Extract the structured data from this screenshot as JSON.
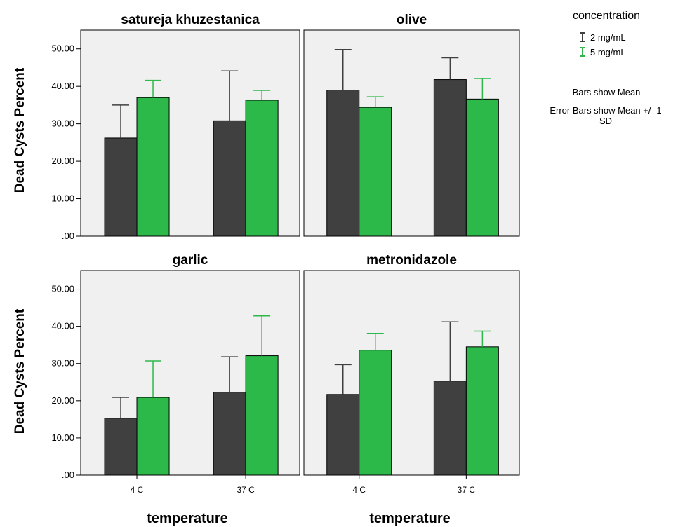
{
  "chart_data": {
    "type": "bar",
    "ylabel": "Dead Cysts Percent",
    "xlabel": "temperature",
    "ylim": [
      0,
      55
    ],
    "yticks": [
      ".00",
      "10.00",
      "20.00",
      "30.00",
      "40.00",
      "50.00"
    ],
    "ytick_values": [
      0,
      10,
      20,
      30,
      40,
      50
    ],
    "categories": [
      "4 C",
      "37 C"
    ],
    "legend": {
      "title": "concentration",
      "placement": "top-right",
      "entries": [
        {
          "name": "2 mg/mL",
          "color": "#404040"
        },
        {
          "name": "5 mg/mL",
          "color": "#2db84a"
        }
      ],
      "note1": "Bars show Mean",
      "note2_line1": "Error Bars show Mean +/- 1",
      "note2_line2": "SD"
    },
    "panels": [
      {
        "title": "satureja khuzestanica",
        "series": [
          {
            "name": "2 mg/mL",
            "values": [
              26.2,
              30.8
            ],
            "errors": [
              8.8,
              13.3
            ]
          },
          {
            "name": "5 mg/mL",
            "values": [
              37.0,
              36.3
            ],
            "errors": [
              4.6,
              2.6
            ]
          }
        ]
      },
      {
        "title": "olive",
        "series": [
          {
            "name": "2 mg/mL",
            "values": [
              39.0,
              41.8
            ],
            "errors": [
              10.8,
              5.8
            ]
          },
          {
            "name": "5 mg/mL",
            "values": [
              34.4,
              36.6
            ],
            "errors": [
              2.8,
              5.5
            ]
          }
        ]
      },
      {
        "title": "garlic",
        "series": [
          {
            "name": "2 mg/mL",
            "values": [
              15.3,
              22.3
            ],
            "errors": [
              5.6,
              9.5
            ]
          },
          {
            "name": "5 mg/mL",
            "values": [
              20.9,
              32.1
            ],
            "errors": [
              9.8,
              10.7
            ]
          }
        ]
      },
      {
        "title": "metronidazole",
        "series": [
          {
            "name": "2 mg/mL",
            "values": [
              21.7,
              25.3
            ],
            "errors": [
              8.0,
              15.9
            ]
          },
          {
            "name": "5 mg/mL",
            "values": [
              33.6,
              34.5
            ],
            "errors": [
              4.5,
              4.2
            ]
          }
        ]
      }
    ],
    "colors": {
      "panel_bg": "#f0f0f0",
      "bar_dark": "#404040",
      "bar_green": "#2db84a",
      "error_dark": "#404040",
      "error_green": "#2db84a"
    }
  }
}
